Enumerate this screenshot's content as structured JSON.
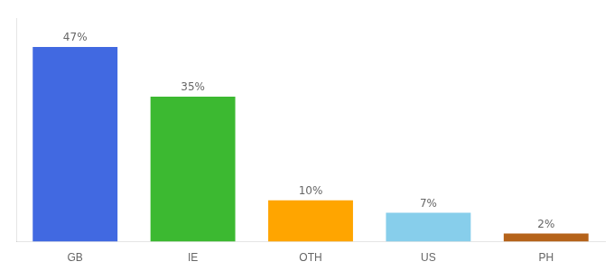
{
  "chart_data": {
    "type": "bar",
    "categories": [
      "GB",
      "IE",
      "OTH",
      "US",
      "PH"
    ],
    "values": [
      47,
      35,
      10,
      7,
      2
    ],
    "value_labels": [
      "47%",
      "35%",
      "10%",
      "7%",
      "2%"
    ],
    "colors": [
      "#4169E1",
      "#3CB931",
      "#FFA500",
      "#87CEEB",
      "#B5631A"
    ],
    "ylim": [
      0,
      54
    ],
    "grid": false,
    "data_labels": true,
    "tick_labels": "x"
  }
}
